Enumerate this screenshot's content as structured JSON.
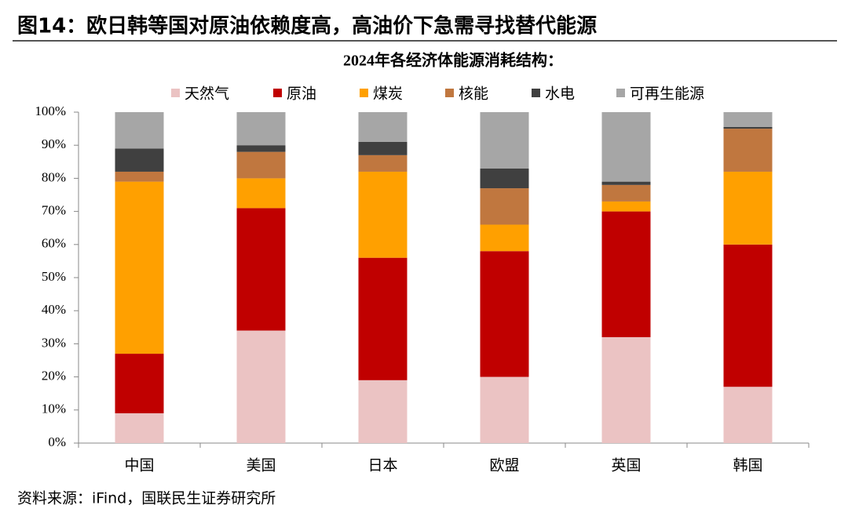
{
  "header": {
    "title": "图14：欧日韩等国对原油依赖度高，高油价下急需寻找替代能源"
  },
  "chart_data": {
    "type": "stacked-bar",
    "title": "2024年各经济体能源消耗结构：",
    "categories": [
      "中国",
      "美国",
      "日本",
      "欧盟",
      "英国",
      "韩国"
    ],
    "series": [
      {
        "name": "天然气",
        "color": "#ebc3c3",
        "values": [
          9,
          34,
          19,
          20,
          32,
          17
        ]
      },
      {
        "name": "原油",
        "color": "#c00000",
        "values": [
          18,
          37,
          37,
          38,
          38,
          43
        ]
      },
      {
        "name": "煤炭",
        "color": "#ffa000",
        "values": [
          52,
          9,
          26,
          8,
          3,
          22
        ]
      },
      {
        "name": "核能",
        "color": "#c0773f",
        "values": [
          3,
          8,
          5,
          11,
          5,
          13
        ]
      },
      {
        "name": "水电",
        "color": "#404040",
        "values": [
          7,
          2,
          4,
          6,
          1,
          0.5
        ]
      },
      {
        "name": "可再生能源",
        "color": "#a6a6a6",
        "values": [
          11,
          10,
          9,
          17,
          21,
          4.5
        ]
      }
    ],
    "ylim": [
      0,
      100
    ],
    "yticks": [
      {
        "value": 0,
        "label": "0%"
      },
      {
        "value": 10,
        "label": "10%"
      },
      {
        "value": 20,
        "label": "20%"
      },
      {
        "value": 30,
        "label": "30%"
      },
      {
        "value": 40,
        "label": "40%"
      },
      {
        "value": 50,
        "label": "50%"
      },
      {
        "value": 60,
        "label": "60%"
      },
      {
        "value": 70,
        "label": "70%"
      },
      {
        "value": 80,
        "label": "80%"
      },
      {
        "value": 90,
        "label": "90%"
      },
      {
        "value": 100,
        "label": "100%"
      }
    ],
    "legend": "top"
  },
  "source": "资料来源：iFind，国联民生证券研究所"
}
